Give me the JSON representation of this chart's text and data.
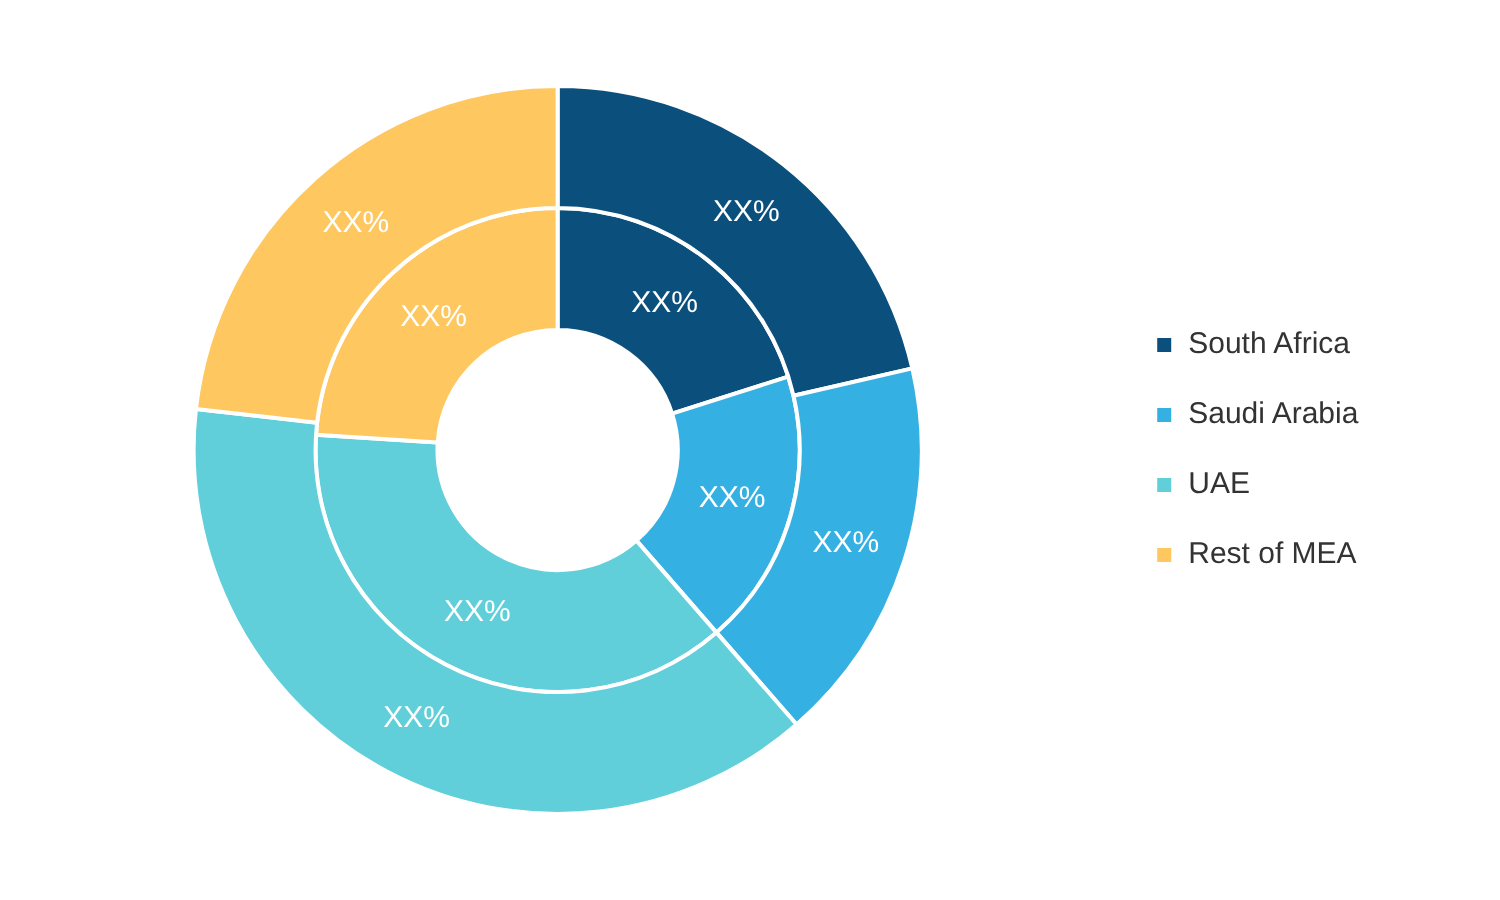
{
  "chart_data": {
    "type": "donut",
    "categories": [
      "South Africa",
      "Saudi Arabia",
      "UAE",
      "Rest of MEA"
    ],
    "series": [
      {
        "values": [
          21.4,
          17.2,
          38.2,
          23.2
        ],
        "colors": [
          "#0b4f7d",
          "#35b0e2",
          "#61cfda",
          "#fec75f"
        ],
        "value_labels": [
          "XX%",
          "XX%",
          "XX%",
          "XX%"
        ]
      },
      {
        "values": [
          20.1,
          18.5,
          37.4,
          24.0
        ],
        "colors": [
          "#0b4f7d",
          "#35b0e2",
          "#61cfda",
          "#fec75f"
        ],
        "value_labels": [
          "XX%",
          "XX%",
          "XX%",
          "XX%"
        ]
      }
    ],
    "legend": "right"
  }
}
